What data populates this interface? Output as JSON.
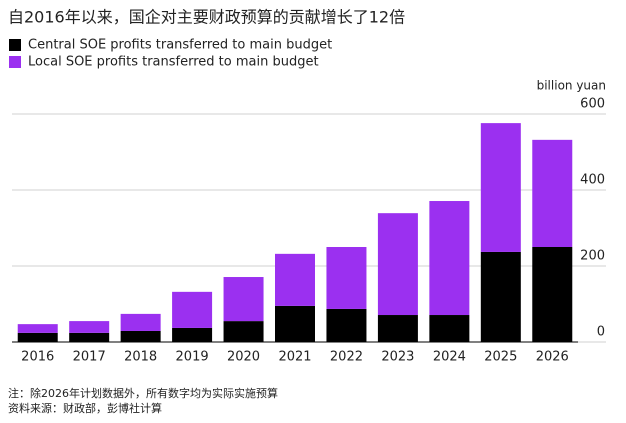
{
  "chart_data": {
    "type": "stacked_bar",
    "title": "自2016年以来，国企对主要财政预算的贡献增长了12倍",
    "y_axis_label": "billion yuan",
    "categories": [
      "2016",
      "2017",
      "2018",
      "2019",
      "2020",
      "2021",
      "2022",
      "2023",
      "2024",
      "2025",
      "2026"
    ],
    "series": [
      {
        "name": "Central SOE profits transferred to main budget",
        "color": "#000000",
        "values": [
          24,
          24,
          29,
          37,
          55,
          95,
          87,
          71,
          71,
          237,
          250
        ]
      },
      {
        "name": "Local SOE profits transferred to main budget",
        "color": "#9b30f0",
        "values": [
          23,
          31,
          45,
          95,
          116,
          137,
          163,
          268,
          300,
          339,
          282
        ]
      }
    ],
    "ylim": [
      0,
      600
    ],
    "yticks": [
      0,
      200,
      400,
      600
    ],
    "grid": true,
    "notes": [
      "注：除2026年计划数据外，所有数字均为实际实施预算",
      "资料来源：财政部，彭博社计算"
    ]
  }
}
